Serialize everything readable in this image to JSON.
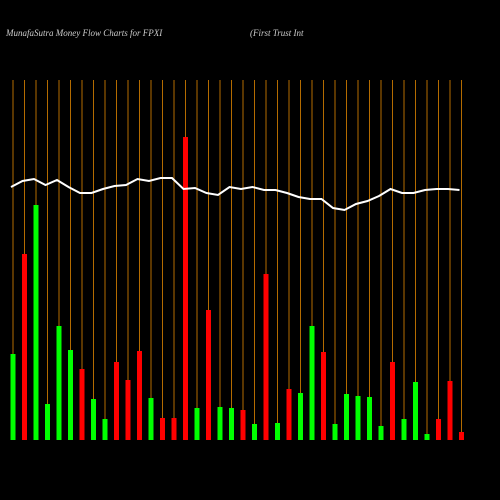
{
  "chart_data": {
    "type": "bar",
    "title": "MunafaSutra  Money Flow  Charts for FPXI",
    "subtitle": "(First Trust Int",
    "categories": [
      null,
      null,
      null,
      null,
      null,
      null,
      null,
      null,
      null,
      null,
      null,
      null,
      null,
      null,
      null,
      null,
      null,
      null,
      null,
      null,
      null,
      null,
      null,
      null,
      null,
      null,
      null,
      null,
      null,
      null,
      null,
      null,
      null,
      null,
      null,
      null,
      null,
      null,
      null,
      null
    ],
    "values": [
      86,
      186,
      235,
      36,
      114,
      90,
      71,
      41,
      21,
      78,
      60,
      89,
      42,
      22,
      22,
      303,
      32,
      130,
      33,
      32,
      30,
      16,
      166,
      17,
      51,
      47,
      114,
      88,
      16,
      46,
      44,
      43,
      14,
      78,
      21,
      58,
      6,
      21,
      59,
      8
    ],
    "bar_colors": [
      "#00ff00",
      "#ff0000",
      "#00ff00",
      "#00ff00",
      "#00ff00",
      "#00ff00",
      "#ff0000",
      "#00ff00",
      "#00ff00",
      "#ff0000",
      "#ff0000",
      "#ff0000",
      "#00ff00",
      "#ff0000",
      "#ff0000",
      "#ff0000",
      "#00ff00",
      "#ff0000",
      "#00ff00",
      "#00ff00",
      "#ff0000",
      "#00ff00",
      "#ff0000",
      "#00ff00",
      "#ff0000",
      "#00ff00",
      "#00ff00",
      "#ff0000",
      "#00ff00",
      "#00ff00",
      "#00ff00",
      "#00ff00",
      "#00ff00",
      "#ff0000",
      "#00ff00",
      "#00ff00",
      "#00ff00",
      "#ff0000",
      "#ff0000",
      "#ff0000"
    ],
    "line_values": [
      253,
      259,
      261,
      255,
      260,
      253,
      247,
      247,
      251,
      254,
      255,
      261,
      259,
      262,
      262,
      251,
      252,
      247,
      245,
      253,
      251,
      253,
      250,
      250,
      247,
      243,
      241,
      241,
      232,
      230,
      236,
      239,
      244,
      251,
      247,
      247,
      250,
      251,
      251,
      250
    ],
    "line_color": "#ffffff",
    "grid_color": "#b36b00",
    "ylim": [
      0,
      360
    ]
  }
}
